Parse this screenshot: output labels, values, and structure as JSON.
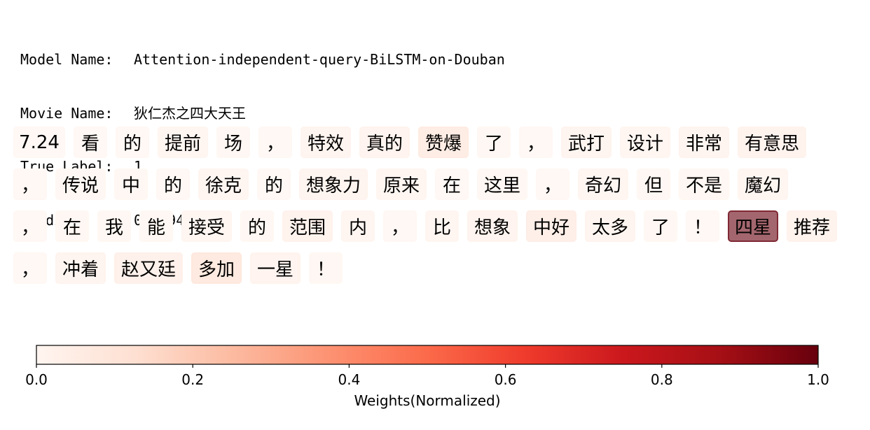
{
  "header": {
    "model_key": "Model Name:",
    "model_value": "Attention-independent-query-BiLSTM-on-Douban",
    "movie_key": "Movie Name:",
    "movie_value": "狄仁杰之四大天王",
    "label_key": "True Label:",
    "label_value": "1",
    "predict_key": "Predict:",
    "predict_value": "0.9994"
  },
  "chart_data": {
    "type": "heatmap",
    "colormap": "Reds",
    "tokens": [
      [
        {
          "text": "7.24",
          "weight": 0.01
        },
        {
          "text": "看",
          "weight": 0.01
        },
        {
          "text": "的",
          "weight": 0.01
        },
        {
          "text": "提前",
          "weight": 0.03
        },
        {
          "text": "场",
          "weight": 0.02
        },
        {
          "text": "，",
          "weight": 0.01
        },
        {
          "text": "特效",
          "weight": 0.04
        },
        {
          "text": "真的",
          "weight": 0.05
        },
        {
          "text": "赞爆",
          "weight": 0.12
        },
        {
          "text": "了",
          "weight": 0.02
        },
        {
          "text": "，",
          "weight": 0.01
        },
        {
          "text": "武打",
          "weight": 0.04
        },
        {
          "text": "设计",
          "weight": 0.03
        },
        {
          "text": "非常",
          "weight": 0.04
        },
        {
          "text": "有意思",
          "weight": 0.06
        }
      ],
      [
        {
          "text": "，",
          "weight": 0.01
        },
        {
          "text": "传说",
          "weight": 0.02
        },
        {
          "text": "中",
          "weight": 0.02
        },
        {
          "text": "的",
          "weight": 0.01
        },
        {
          "text": "徐克",
          "weight": 0.03
        },
        {
          "text": "的",
          "weight": 0.01
        },
        {
          "text": "想象力",
          "weight": 0.04
        },
        {
          "text": "原来",
          "weight": 0.03
        },
        {
          "text": "在",
          "weight": 0.01
        },
        {
          "text": "这里",
          "weight": 0.02
        },
        {
          "text": "，",
          "weight": 0.01
        },
        {
          "text": "奇幻",
          "weight": 0.03
        },
        {
          "text": "但",
          "weight": 0.02
        },
        {
          "text": "不是",
          "weight": 0.02
        },
        {
          "text": "魔幻",
          "weight": 0.03
        }
      ],
      [
        {
          "text": "，",
          "weight": 0.01
        },
        {
          "text": "在",
          "weight": 0.02
        },
        {
          "text": "我",
          "weight": 0.02
        },
        {
          "text": "能",
          "weight": 0.02
        },
        {
          "text": "接受",
          "weight": 0.03
        },
        {
          "text": "的",
          "weight": 0.02
        },
        {
          "text": "范围",
          "weight": 0.06
        },
        {
          "text": "内",
          "weight": 0.03
        },
        {
          "text": "，",
          "weight": 0.01
        },
        {
          "text": "比",
          "weight": 0.03
        },
        {
          "text": "想象",
          "weight": 0.05
        },
        {
          "text": "中好",
          "weight": 0.1
        },
        {
          "text": "太多",
          "weight": 0.04
        },
        {
          "text": "了",
          "weight": 0.02
        },
        {
          "text": "！",
          "weight": 0.01
        },
        {
          "text": "四星",
          "weight": 1.0
        },
        {
          "text": "推荐",
          "weight": 0.06
        }
      ],
      [
        {
          "text": "，",
          "weight": 0.01
        },
        {
          "text": "冲着",
          "weight": 0.04
        },
        {
          "text": "赵又廷",
          "weight": 0.08
        },
        {
          "text": "多加",
          "weight": 0.14
        },
        {
          "text": "一星",
          "weight": 0.05
        },
        {
          "text": "！",
          "weight": 0.02
        }
      ]
    ],
    "colorbar": {
      "label": "Weights(Normalized)",
      "range": [
        0.0,
        1.0
      ],
      "ticks": [
        "0.0",
        "0.2",
        "0.4",
        "0.6",
        "0.8",
        "1.0"
      ]
    }
  }
}
